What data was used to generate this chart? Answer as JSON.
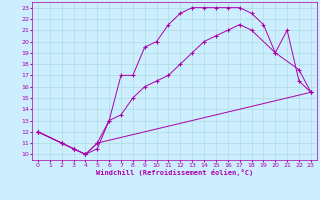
{
  "xlabel": "Windchill (Refroidissement éolien,°C)",
  "bg_color": "#cceeff",
  "grid_color": "#aadddd",
  "line_color": "#aa00aa",
  "spine_color": "#aa00aa",
  "xlim": [
    -0.5,
    23.5
  ],
  "ylim": [
    9.5,
    23.5
  ],
  "xticks": [
    0,
    1,
    2,
    3,
    4,
    5,
    6,
    7,
    8,
    9,
    10,
    11,
    12,
    13,
    14,
    15,
    16,
    17,
    18,
    19,
    20,
    21,
    22,
    23
  ],
  "yticks": [
    10,
    11,
    12,
    13,
    14,
    15,
    16,
    17,
    18,
    19,
    20,
    21,
    22,
    23
  ],
  "line1_x": [
    0,
    2,
    3,
    4,
    5,
    6,
    7,
    8,
    9,
    10,
    11,
    12,
    13,
    14,
    15,
    16,
    17,
    18,
    19,
    20,
    21,
    22,
    23
  ],
  "line1_y": [
    12,
    11,
    10.5,
    10,
    10.5,
    13,
    17,
    17,
    19.5,
    20,
    21.5,
    22.5,
    23,
    23,
    23,
    23,
    23,
    22.5,
    21.5,
    19,
    21,
    16.5,
    15.5
  ],
  "line2_x": [
    0,
    2,
    3,
    4,
    5,
    6,
    7,
    8,
    9,
    10,
    11,
    12,
    13,
    14,
    15,
    16,
    17,
    18,
    20,
    22,
    23
  ],
  "line2_y": [
    12,
    11,
    10.5,
    10,
    11,
    13,
    13.5,
    15,
    16,
    16.5,
    17,
    18,
    19,
    20,
    20.5,
    21,
    21.5,
    21,
    19,
    17.5,
    15.5
  ],
  "line3_x": [
    0,
    2,
    3,
    4,
    5,
    23
  ],
  "line3_y": [
    12,
    11,
    10.5,
    10,
    11,
    15.5
  ]
}
